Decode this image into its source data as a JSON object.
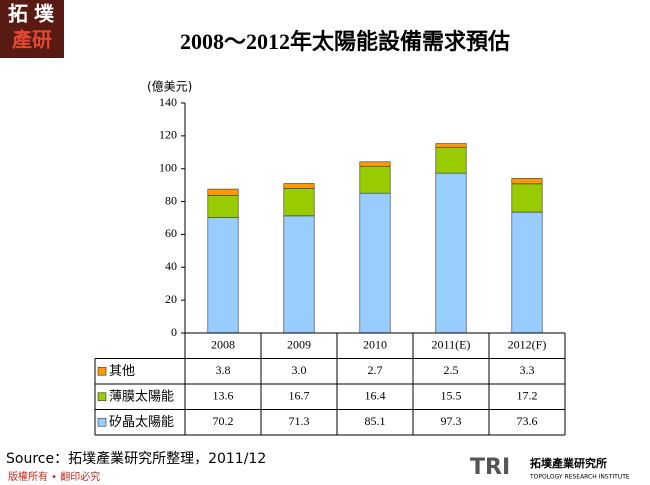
{
  "chart_data": {
    "type": "stacked-bar",
    "title": "2008～2012年太陽能設備需求預估",
    "ylabel": "(億美元)",
    "categories": [
      "2008",
      "2009",
      "2010",
      "2011(E)",
      "2012(F)"
    ],
    "series": [
      {
        "name": "矽晶太陽能",
        "color": "#99ccff",
        "values": [
          70.2,
          71.3,
          85.1,
          97.3,
          73.6
        ],
        "value_labels": [
          "70.2",
          "71.3",
          "85.1",
          "97.3",
          "73.6"
        ]
      },
      {
        "name": "薄膜太陽能",
        "color": "#99cc00",
        "values": [
          13.6,
          16.7,
          16.4,
          15.5,
          17.2
        ],
        "value_labels": [
          "13.6",
          "16.7",
          "16.4",
          "15.5",
          "17.2"
        ]
      },
      {
        "name": "其他",
        "color": "#ff9900",
        "values": [
          3.8,
          3.0,
          2.7,
          2.5,
          3.3
        ],
        "value_labels": [
          "3.8",
          "3.0",
          "2.7",
          "2.5",
          "3.3"
        ]
      }
    ],
    "ylim": [
      0,
      140
    ],
    "yticks": [
      0,
      20,
      40,
      60,
      80,
      100,
      120,
      140
    ],
    "grid": false,
    "source": "Source：拓墣產業研究所整理，2011/12"
  },
  "branding": {
    "logo_top": "拓",
    "logo_mid": "墣",
    "logo_bottom": "產研",
    "footer": "版權所有 • 翻印必究",
    "tri": "TRI",
    "company": "拓墣產業研究所",
    "company_en": "TOPOLOGY RESEARCH INSTITUTE"
  }
}
